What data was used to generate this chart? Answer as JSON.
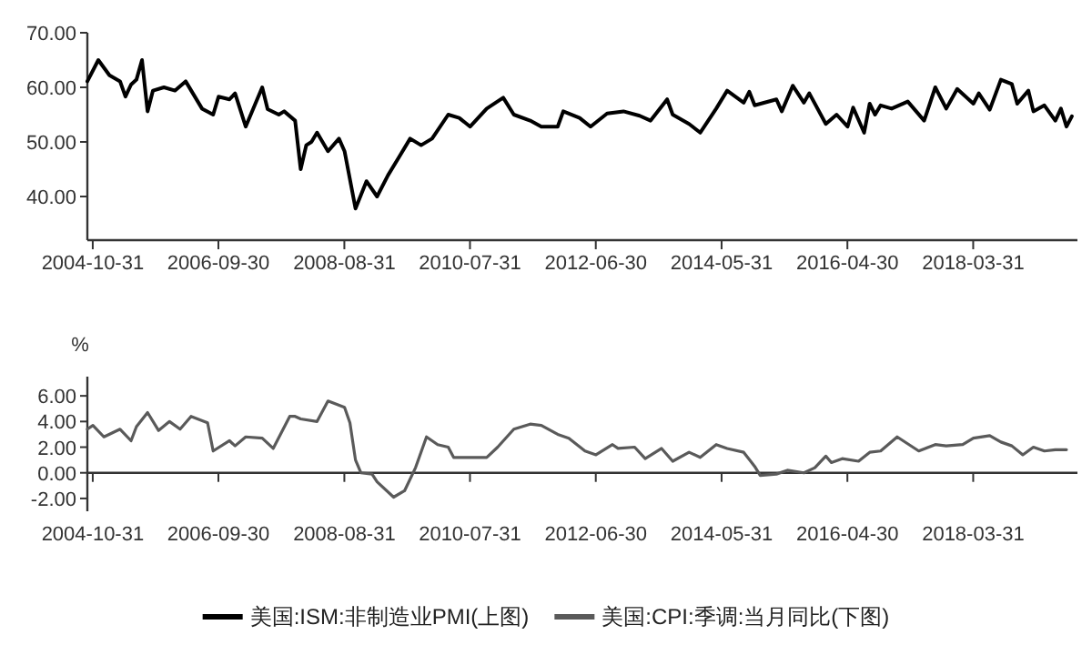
{
  "chart_data": [
    {
      "type": "line",
      "xlim": [
        "2004-10",
        "2019-11"
      ],
      "ylim": [
        32,
        70
      ],
      "xticks": [
        "2004-10-31",
        "2006-09-30",
        "2008-08-31",
        "2010-07-31",
        "2012-06-30",
        "2014-05-31",
        "2016-04-30",
        "2018-03-31"
      ],
      "yticks": [
        {
          "value": 40,
          "label": "40.00"
        },
        {
          "value": 50,
          "label": "50.00"
        },
        {
          "value": 60,
          "label": "60.00"
        },
        {
          "value": 70,
          "label": "70.00"
        }
      ],
      "legend": "bottom",
      "series": [
        {
          "name": "美国:ISM:非制造业PMI(上图)",
          "color": "#000000",
          "x": [
            "2004-10",
            "2004-12",
            "2005-02",
            "2005-04",
            "2005-05",
            "2005-06",
            "2005-07",
            "2005-08",
            "2005-09",
            "2005-10",
            "2005-12",
            "2006-02",
            "2006-04",
            "2006-07",
            "2006-09",
            "2006-10",
            "2006-12",
            "2007-01",
            "2007-03",
            "2007-06",
            "2007-07",
            "2007-09",
            "2007-10",
            "2007-12",
            "2008-01",
            "2008-02",
            "2008-03",
            "2008-04",
            "2008-06",
            "2008-08",
            "2008-09",
            "2008-11",
            "2009-01",
            "2009-03",
            "2009-05",
            "2009-07",
            "2009-09",
            "2009-11",
            "2010-01",
            "2010-04",
            "2010-06",
            "2010-08",
            "2010-11",
            "2011-02",
            "2011-04",
            "2011-07",
            "2011-09",
            "2011-12",
            "2012-01",
            "2012-04",
            "2012-06",
            "2012-09",
            "2012-12",
            "2013-03",
            "2013-05",
            "2013-08",
            "2013-09",
            "2013-12",
            "2014-02",
            "2014-05",
            "2014-07",
            "2014-10",
            "2014-11",
            "2014-12",
            "2015-04",
            "2015-05",
            "2015-07",
            "2015-09",
            "2015-10",
            "2016-01",
            "2016-03",
            "2016-05",
            "2016-06",
            "2016-08",
            "2016-09",
            "2016-10",
            "2016-11",
            "2017-01",
            "2017-04",
            "2017-07",
            "2017-09",
            "2017-11",
            "2018-01",
            "2018-04",
            "2018-05",
            "2018-07",
            "2018-09",
            "2018-11",
            "2018-12",
            "2019-02",
            "2019-03",
            "2019-05",
            "2019-07",
            "2019-08",
            "2019-09",
            "2019-10"
          ],
          "values": [
            61.1,
            65,
            62.2,
            61.1,
            58.3,
            60.5,
            61.4,
            65,
            55.6,
            59.4,
            60,
            59.4,
            61.1,
            56.1,
            55,
            58.3,
            57.8,
            58.9,
            52.8,
            60,
            56,
            55,
            55.6,
            53.9,
            45,
            49.4,
            50,
            51.7,
            48.3,
            50.6,
            48.3,
            37.8,
            42.8,
            40,
            43.9,
            47.2,
            50.6,
            49.4,
            50.6,
            55,
            54.4,
            52.8,
            56.1,
            58.1,
            55,
            53.9,
            52.8,
            52.8,
            55.6,
            54.4,
            52.8,
            55.2,
            55.6,
            54.8,
            53.9,
            57.8,
            55,
            53.3,
            51.7,
            56.1,
            59.4,
            57.2,
            59.2,
            56.7,
            57.8,
            55.6,
            60.3,
            57.2,
            58.9,
            53.3,
            55,
            52.8,
            56.3,
            51.7,
            57,
            55,
            56.7,
            56.1,
            57.4,
            53.9,
            60,
            56.1,
            59.7,
            57,
            58.9,
            55.9,
            61.4,
            60.6,
            57,
            59.4,
            55.6,
            56.7,
            53.9,
            56.1,
            52.8,
            54.7
          ]
        }
      ]
    },
    {
      "type": "line",
      "xlim": [
        "2004-10",
        "2019-11"
      ],
      "ylim": [
        -3,
        7.5
      ],
      "ylabel": "%",
      "xticks": [
        "2004-10-31",
        "2006-09-30",
        "2008-08-31",
        "2010-07-31",
        "2012-06-30",
        "2014-05-31",
        "2016-04-30",
        "2018-03-31"
      ],
      "yticks": [
        {
          "value": -2,
          "label": "-2.00"
        },
        {
          "value": 0,
          "label": "0.00"
        },
        {
          "value": 2,
          "label": "2.00"
        },
        {
          "value": 4,
          "label": "4.00"
        },
        {
          "value": 6,
          "label": "6.00"
        }
      ],
      "legend": "bottom",
      "series": [
        {
          "name": "美国:CPI:季调:当月同比(下图)",
          "color": "#5a5a5a",
          "x": [
            "2004-10",
            "2004-11",
            "2005-01",
            "2005-04",
            "2005-06",
            "2005-07",
            "2005-09",
            "2005-11",
            "2006-01",
            "2006-03",
            "2006-05",
            "2006-08",
            "2006-09",
            "2006-12",
            "2007-01",
            "2007-03",
            "2007-06",
            "2007-08",
            "2007-11",
            "2007-12",
            "2008-01",
            "2008-04",
            "2008-06",
            "2008-09",
            "2008-10",
            "2008-11",
            "2008-12",
            "2009-02",
            "2009-03",
            "2009-06",
            "2009-08",
            "2009-10",
            "2009-12",
            "2010-02",
            "2010-04",
            "2010-05",
            "2010-08",
            "2010-11",
            "2011-01",
            "2011-04",
            "2011-07",
            "2011-09",
            "2011-12",
            "2012-02",
            "2012-05",
            "2012-07",
            "2012-10",
            "2012-11",
            "2013-02",
            "2013-04",
            "2013-07",
            "2013-09",
            "2013-12",
            "2014-02",
            "2014-05",
            "2014-07",
            "2014-10",
            "2014-12",
            "2015-01",
            "2015-04",
            "2015-06",
            "2015-09",
            "2015-11",
            "2016-01",
            "2016-02",
            "2016-04",
            "2016-07",
            "2016-09",
            "2016-11",
            "2017-02",
            "2017-06",
            "2017-09",
            "2017-11",
            "2018-02",
            "2018-04",
            "2018-07",
            "2018-09",
            "2018-11",
            "2019-01",
            "2019-03",
            "2019-05",
            "2019-07",
            "2019-09"
          ],
          "values": [
            3.4,
            3.7,
            2.8,
            3.4,
            2.5,
            3.6,
            4.7,
            3.3,
            4,
            3.4,
            4.4,
            3.9,
            1.7,
            2.5,
            2.1,
            2.8,
            2.7,
            1.9,
            4.4,
            4.4,
            4.2,
            4,
            5.6,
            5.1,
            3.9,
            1,
            0,
            -0.1,
            -0.7,
            -1.9,
            -1.4,
            0.4,
            2.8,
            2.2,
            2,
            1.2,
            1.2,
            1.2,
            2,
            3.4,
            3.8,
            3.7,
            3,
            2.7,
            1.7,
            1.4,
            2.2,
            1.9,
            2,
            1.1,
            1.9,
            0.9,
            1.6,
            1.2,
            2.2,
            1.9,
            1.6,
            0.5,
            -0.2,
            -0.1,
            0.2,
            0,
            0.4,
            1.3,
            0.8,
            1.1,
            0.9,
            1.6,
            1.7,
            2.8,
            1.7,
            2.2,
            2.1,
            2.2,
            2.7,
            2.9,
            2.4,
            2.1,
            1.4,
            2,
            1.7,
            1.8,
            1.8
          ]
        }
      ]
    }
  ]
}
